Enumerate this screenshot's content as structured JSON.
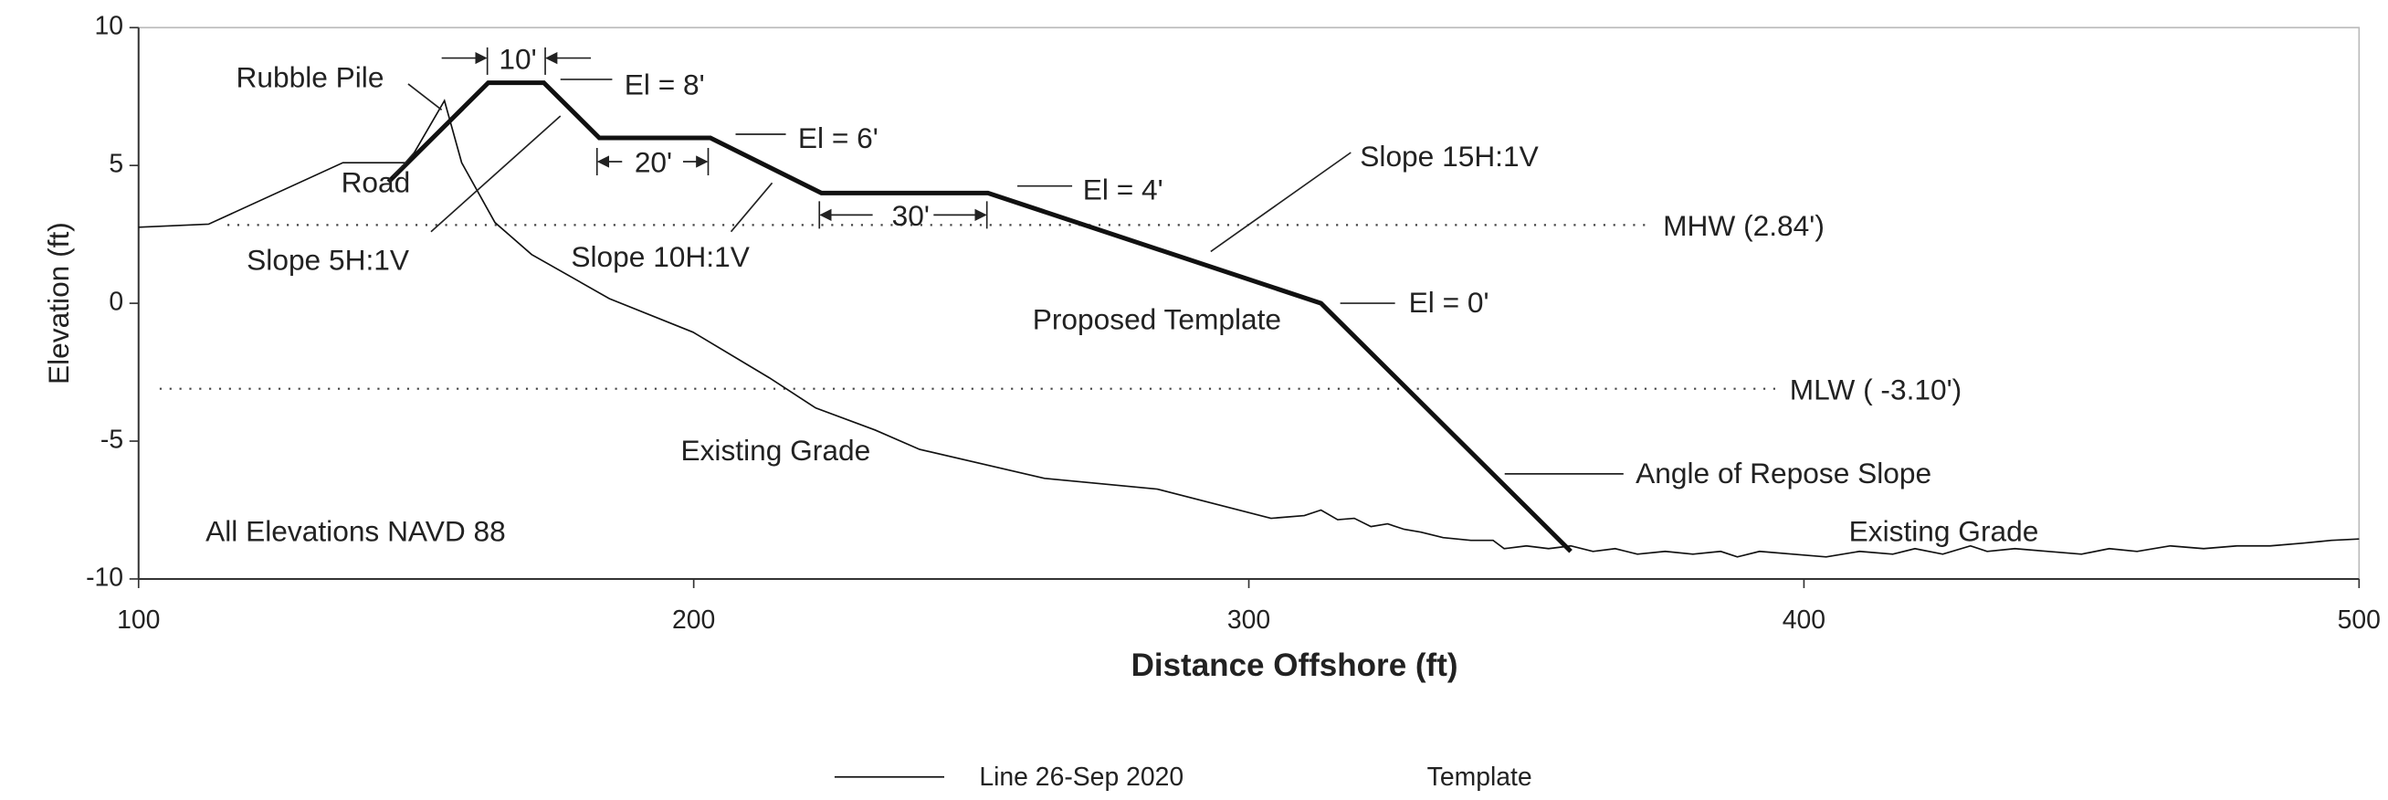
{
  "chart_data": {
    "type": "line",
    "x_label": "Distance Offshore (ft)",
    "y_label": "Elevation (ft)",
    "xlim": [
      100,
      500
    ],
    "ylim": [
      -10,
      10
    ],
    "xticks": [
      100,
      200,
      300,
      400,
      500
    ],
    "yticks": [
      10,
      5,
      0,
      -5,
      -10
    ],
    "series": [
      {
        "name": "Line 26-Sep 2020",
        "color": "#111111",
        "width": 1,
        "x": [
          100,
          112.6,
          136.8,
          148.6,
          155.1,
          158.2,
          164.2,
          170.8,
          184.8,
          199.9,
          213.6,
          222,
          232.7,
          240.7,
          263.2,
          283.5,
          304,
          310,
          313,
          316,
          319,
          322,
          325,
          328,
          331,
          335,
          340,
          344,
          346,
          350,
          354,
          358,
          362,
          366,
          370,
          375,
          380,
          385,
          388,
          392,
          398,
          404,
          410,
          416,
          420,
          425,
          430,
          433,
          438,
          444,
          450,
          455,
          460,
          466,
          472,
          478,
          484,
          490,
          495,
          500
        ],
        "values": [
          2.76,
          2.87,
          5.1,
          5.1,
          7.35,
          5.1,
          2.93,
          1.77,
          0.17,
          -1.05,
          -2.7,
          -3.8,
          -4.6,
          -5.3,
          -6.35,
          -6.74,
          -7.8,
          -7.7,
          -7.5,
          -7.85,
          -7.8,
          -8.1,
          -8.0,
          -8.2,
          -8.3,
          -8.5,
          -8.6,
          -8.6,
          -8.9,
          -8.8,
          -8.9,
          -8.8,
          -9.0,
          -8.9,
          -9.1,
          -9.0,
          -9.1,
          -9.0,
          -9.2,
          -9.0,
          -9.1,
          -9.2,
          -9.0,
          -9.1,
          -8.9,
          -9.1,
          -8.8,
          -9.0,
          -8.9,
          -9.0,
          -9.1,
          -8.9,
          -9.0,
          -8.8,
          -8.9,
          -8.8,
          -8.8,
          -8.7,
          -8.6,
          -8.55
        ]
      },
      {
        "name": "Template",
        "color": "#111111",
        "width": 3,
        "x": [
          145,
          163,
          173,
          183,
          203,
          223,
          253,
          313,
          358
        ],
        "values": [
          4.4,
          8,
          8,
          6,
          6,
          4,
          4,
          0,
          -9
        ]
      }
    ],
    "reference_lines": [
      {
        "label": "MHW (2.84')",
        "value": 2.84,
        "x": [
          116,
          372.7
        ]
      },
      {
        "label": "MLW ( -3.10')",
        "value": -3.1,
        "x": [
          103.8,
          395.5
        ]
      }
    ],
    "annotations": [
      "Rubble Pile",
      "Road",
      "10'",
      "El = 8'",
      "20'",
      "El = 6'",
      "30'",
      "El = 4'",
      "Slope 15H:1V",
      "Slope 5H:1V",
      "Slope 10H:1V",
      "Proposed Template",
      "El = 0'",
      "Existing Grade",
      "Angle of Repose Slope",
      "All Elevations NAVD 88",
      "Existing Grade"
    ]
  }
}
